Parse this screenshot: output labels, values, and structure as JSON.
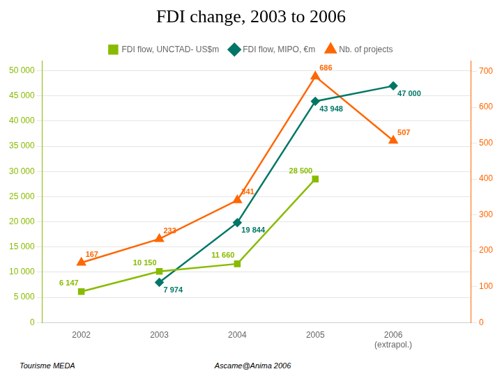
{
  "chart_data": {
    "type": "line",
    "title": "FDI change, 2003 to 2006",
    "x": [
      2002,
      2003,
      2004,
      2005,
      2006
    ],
    "xlim": [
      2001.5,
      2007.0
    ],
    "xticks": [
      2002,
      2003,
      2004,
      2005,
      {
        "value": 2006,
        "label": "2006\n(extrapol.)"
      }
    ],
    "ylim": [
      0,
      52000
    ],
    "yticks": [
      0,
      {
        "value": 5000,
        "label": "5 000"
      },
      {
        "value": 10000,
        "label": "10 000"
      },
      {
        "value": 15000,
        "label": "15 000"
      },
      {
        "value": 20000,
        "label": "20 000"
      },
      {
        "value": 25000,
        "label": "25 000"
      },
      {
        "value": 30000,
        "label": "30 000"
      },
      {
        "value": 35000,
        "label": "35 000"
      },
      {
        "value": 40000,
        "label": "40 000"
      },
      {
        "value": 45000,
        "label": "45 000"
      },
      {
        "value": 50000,
        "label": "50 000"
      }
    ],
    "y2lim": [
      0,
      730
    ],
    "y2ticks": [
      0,
      100,
      200,
      300,
      400,
      500,
      600,
      700
    ],
    "grid": true,
    "legend": "top",
    "data_labels": true,
    "series": [
      {
        "name": "FDI flow, UNCTAD- US$m",
        "color": "#88bb00",
        "marker": "square",
        "values": [
          6147,
          10150,
          11660,
          28500,
          null
        ],
        "value_labels": [
          "6 147",
          "10 150",
          "11 660",
          "28 500",
          null
        ]
      },
      {
        "name": "FDI flow, MIPO, €m",
        "color": "#007766",
        "marker": "diamond",
        "values": [
          null,
          7974,
          19844,
          43948,
          47000
        ],
        "value_labels": [
          null,
          "7 974",
          "19 844",
          "43 948",
          "47 000"
        ]
      },
      {
        "name": "Nb. of projects",
        "color": "#ff6600",
        "marker": "triangle",
        "axis": "y2",
        "values": [
          167,
          233,
          341,
          686,
          507
        ]
      }
    ],
    "annotations": [
      "Tourisme MEDA",
      "Ascame@Anima 2006"
    ]
  }
}
